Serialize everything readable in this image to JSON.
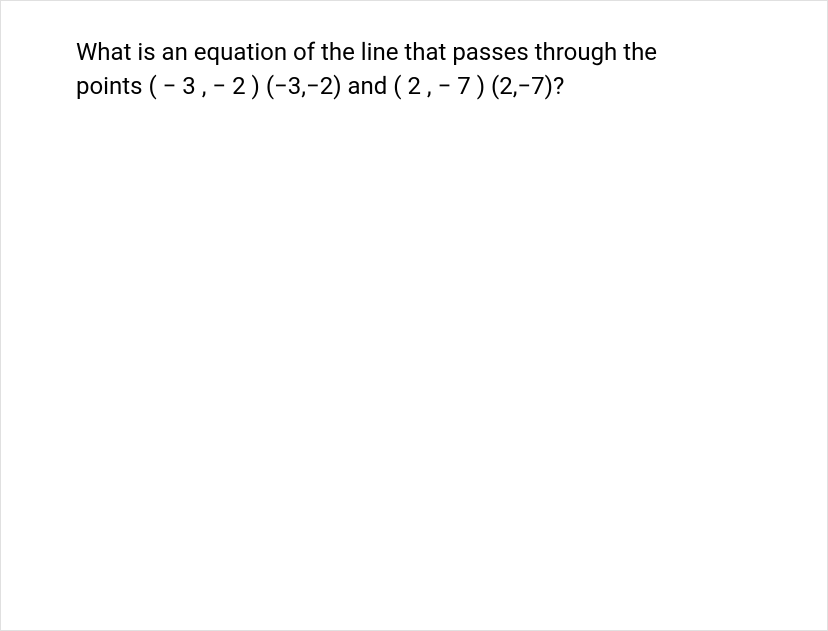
{
  "question": {
    "text": "What is an equation of the line that passes through the points ( − 3 , − 2 ) (−3,−2) and ( 2 , − 7 ) (2,−7)?",
    "points": [
      {
        "x": -3,
        "y": -2
      },
      {
        "x": 2,
        "y": -7
      }
    ],
    "font_size": 24,
    "text_color": "#000000",
    "background_color": "#ffffff",
    "border_color": "#e0e0e0",
    "line_height": 1.4,
    "font_weight": 400
  }
}
